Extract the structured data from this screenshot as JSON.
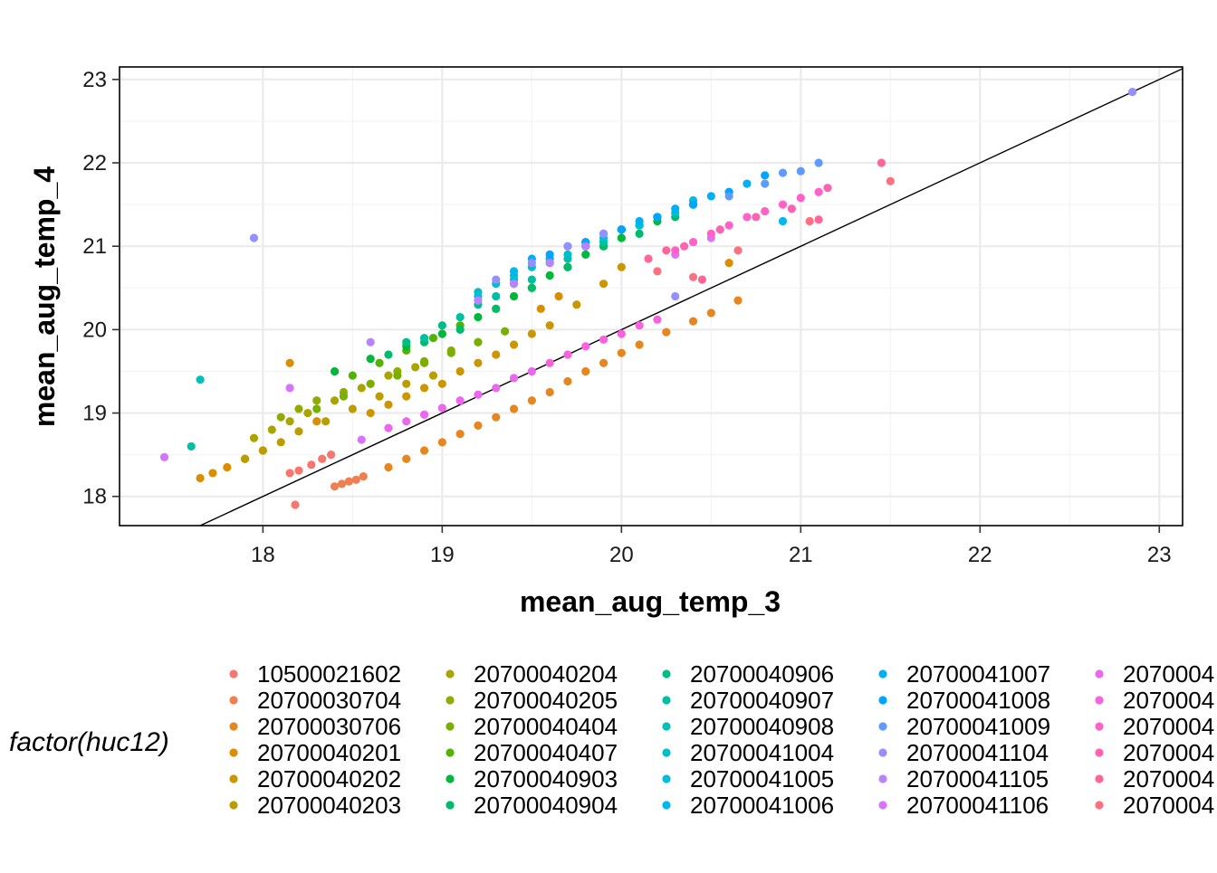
{
  "chart_data": {
    "type": "scatter",
    "xlabel": "mean_aug_temp_3",
    "ylabel": "mean_aug_temp_4",
    "xlim": [
      17.2,
      23.13
    ],
    "ylim": [
      17.65,
      23.15
    ],
    "x_ticks": [
      18,
      19,
      20,
      21,
      22,
      23
    ],
    "y_ticks": [
      18,
      19,
      20,
      21,
      22,
      23
    ],
    "x_tick_labels": [
      "18",
      "19",
      "20",
      "21",
      "22",
      "23"
    ],
    "y_tick_labels": [
      "18",
      "19",
      "20",
      "21",
      "22",
      "23"
    ],
    "grid": true,
    "reference_line": {
      "slope": 1,
      "intercept": 0,
      "color": "#000000"
    },
    "legend": {
      "title": "factor(huc12)",
      "position": "bottom",
      "columns": 5,
      "rows": 6,
      "entries": [
        {
          "label": "10500021602",
          "color": "#F8766D"
        },
        {
          "label": "20700030704",
          "color": "#F07E4F"
        },
        {
          "label": "20700030706",
          "color": "#E6861F"
        },
        {
          "label": "20700040201",
          "color": "#DA8E00"
        },
        {
          "label": "20700040202",
          "color": "#CC9600"
        },
        {
          "label": "20700040203",
          "color": "#BB9D00"
        },
        {
          "label": "20700040204",
          "color": "#A9A400"
        },
        {
          "label": "20700040205",
          "color": "#93AA00"
        },
        {
          "label": "20700040404",
          "color": "#79AF00"
        },
        {
          "label": "20700040407",
          "color": "#53B400"
        },
        {
          "label": "20700040903",
          "color": "#00B83A"
        },
        {
          "label": "20700040904",
          "color": "#00BB69"
        },
        {
          "label": "20700040906",
          "color": "#00BD88"
        },
        {
          "label": "20700040907",
          "color": "#00BFA2"
        },
        {
          "label": "20700040908",
          "color": "#00C0B9"
        },
        {
          "label": "20700041004",
          "color": "#00BFCD"
        },
        {
          "label": "20700041005",
          "color": "#00BCDF"
        },
        {
          "label": "20700041006",
          "color": "#00B8EE"
        },
        {
          "label": "20700041007",
          "color": "#00B0F6"
        },
        {
          "label": "20700041008",
          "color": "#00A5FF"
        },
        {
          "label": "20700041009",
          "color": "#5F9BFF"
        },
        {
          "label": "20700041104",
          "color": "#9590FF"
        },
        {
          "label": "20700041105",
          "color": "#B983FF"
        },
        {
          "label": "20700041106",
          "color": "#D774FD"
        },
        {
          "label": "2070004",
          "color": "#EB67EE"
        },
        {
          "label": "2070004",
          "color": "#F962DD"
        },
        {
          "label": "2070004",
          "color": "#FF61C9"
        },
        {
          "label": "2070004",
          "color": "#FF62B1"
        },
        {
          "label": "2070004",
          "color": "#FF6697"
        },
        {
          "label": "2070004",
          "color": "#FC717F"
        }
      ]
    },
    "series": [
      {
        "name": "10500021602",
        "color": "#F8766D",
        "x": [
          18.15,
          18.2,
          18.27,
          18.33,
          18.38,
          18.18
        ],
        "y": [
          18.28,
          18.31,
          18.38,
          18.45,
          18.5,
          17.9
        ]
      },
      {
        "name": "20700030704",
        "color": "#F07E4F",
        "x": [
          18.4,
          18.44,
          18.48,
          18.52,
          18.56
        ],
        "y": [
          18.12,
          18.15,
          18.18,
          18.2,
          18.24
        ]
      },
      {
        "name": "20700030706",
        "color": "#E6861F",
        "x": [
          18.7,
          18.8,
          18.9,
          19.0,
          19.1,
          19.2,
          19.3,
          19.4,
          19.5,
          19.6,
          19.7,
          19.8,
          19.9,
          20.0,
          20.1,
          20.25,
          20.4,
          20.5,
          20.65
        ],
        "y": [
          18.35,
          18.45,
          18.55,
          18.65,
          18.75,
          18.85,
          18.95,
          19.05,
          19.15,
          19.25,
          19.38,
          19.5,
          19.6,
          19.72,
          19.82,
          19.97,
          20.1,
          20.2,
          20.35
        ]
      },
      {
        "name": "20700040201",
        "color": "#DA8E00",
        "x": [
          17.65,
          17.72,
          17.8,
          17.9,
          18.0,
          18.15,
          18.3,
          19.55,
          19.65,
          20.6
        ],
        "y": [
          18.22,
          18.28,
          18.35,
          18.45,
          18.55,
          19.6,
          18.9,
          20.25,
          20.4,
          20.8
        ]
      },
      {
        "name": "20700040202",
        "color": "#CC9600",
        "x": [
          18.6,
          18.7,
          18.8,
          18.9,
          19.0,
          19.1,
          19.2,
          19.3,
          19.4,
          19.5,
          19.6,
          19.75,
          19.9,
          20.0
        ],
        "y": [
          19.0,
          19.1,
          19.2,
          19.3,
          19.35,
          19.5,
          19.6,
          19.7,
          19.82,
          19.95,
          20.05,
          20.3,
          20.55,
          20.75
        ]
      },
      {
        "name": "20700040203",
        "color": "#BB9D00",
        "x": [
          17.9,
          18.0,
          18.1,
          18.2,
          18.35,
          18.5,
          18.65,
          18.8,
          18.95
        ],
        "y": [
          18.45,
          18.55,
          18.65,
          18.78,
          18.9,
          19.05,
          19.2,
          19.35,
          19.45
        ]
      },
      {
        "name": "20700040204",
        "color": "#A9A400",
        "x": [
          17.95,
          18.05,
          18.15,
          18.25,
          18.4,
          18.55,
          18.7,
          18.85
        ],
        "y": [
          18.7,
          18.8,
          18.9,
          19.0,
          19.15,
          19.3,
          19.45,
          19.55
        ]
      },
      {
        "name": "20700040205",
        "color": "#93AA00",
        "x": [
          18.1,
          18.2,
          18.3,
          18.45,
          18.6,
          18.75,
          18.9,
          19.05,
          19.2
        ],
        "y": [
          18.95,
          19.05,
          19.15,
          19.25,
          19.35,
          19.5,
          19.62,
          19.75,
          19.85
        ]
      },
      {
        "name": "20700040404",
        "color": "#79AF00",
        "x": [
          18.3,
          18.45,
          18.6,
          18.75,
          18.9,
          19.05,
          19.2,
          19.35
        ],
        "y": [
          19.05,
          19.2,
          19.35,
          19.45,
          19.6,
          19.72,
          19.85,
          19.98
        ]
      },
      {
        "name": "20700040407",
        "color": "#53B400",
        "x": [
          18.5,
          18.65,
          18.8,
          18.95,
          19.1,
          19.3,
          19.5,
          19.7,
          19.9
        ],
        "y": [
          19.45,
          19.6,
          19.75,
          19.9,
          20.05,
          20.25,
          20.5,
          20.75,
          21.0
        ]
      },
      {
        "name": "20700040903",
        "color": "#00B83A",
        "x": [
          18.4,
          18.6,
          18.8,
          19.0,
          19.2,
          19.4,
          19.6,
          19.8,
          20.0,
          20.2,
          20.4
        ],
        "y": [
          19.5,
          19.65,
          19.8,
          19.95,
          20.15,
          20.4,
          20.65,
          20.9,
          21.1,
          21.3,
          21.5
        ]
      },
      {
        "name": "20700040904",
        "color": "#00BB69",
        "x": [
          18.7,
          18.9,
          19.1,
          19.3,
          19.5,
          19.7,
          19.9,
          20.1,
          20.3
        ],
        "y": [
          19.7,
          19.85,
          20.0,
          20.25,
          20.5,
          20.75,
          21.0,
          21.15,
          21.35
        ]
      },
      {
        "name": "20700040906",
        "color": "#00BD88",
        "x": [
          18.8,
          19.0,
          19.2,
          19.4,
          19.6,
          19.8,
          20.0,
          20.2
        ],
        "y": [
          19.85,
          20.05,
          20.3,
          20.55,
          20.8,
          21.0,
          21.2,
          21.35
        ]
      },
      {
        "name": "20700040907",
        "color": "#00BFA2",
        "x": [
          17.6,
          18.9,
          19.1,
          19.3,
          19.5,
          19.7,
          19.9,
          20.1
        ],
        "y": [
          18.6,
          19.9,
          20.15,
          20.4,
          20.6,
          20.85,
          21.05,
          21.25
        ]
      },
      {
        "name": "20700040908",
        "color": "#00C0B9",
        "x": [
          17.65,
          19.2,
          19.4,
          19.6,
          19.8,
          20.0
        ],
        "y": [
          19.4,
          20.45,
          20.65,
          20.85,
          21.0,
          21.2
        ]
      },
      {
        "name": "20700041004",
        "color": "#00BFCD",
        "x": [
          19.3,
          19.5,
          19.7,
          19.9,
          20.1,
          20.3
        ],
        "y": [
          20.55,
          20.75,
          20.9,
          21.1,
          21.25,
          21.4
        ]
      },
      {
        "name": "20700041005",
        "color": "#00BCDF",
        "x": [
          19.2,
          19.4,
          19.6,
          19.8,
          20.0,
          20.2,
          20.4
        ],
        "y": [
          20.4,
          20.6,
          20.8,
          21.0,
          21.2,
          21.35,
          21.55
        ]
      },
      {
        "name": "20700041006",
        "color": "#00B8EE",
        "x": [
          19.4,
          19.6,
          19.8,
          20.0,
          20.2,
          20.4,
          20.6,
          20.9
        ],
        "y": [
          20.7,
          20.85,
          21.05,
          21.2,
          21.35,
          21.5,
          21.65,
          21.3
        ]
      },
      {
        "name": "20700041007",
        "color": "#00B0F6",
        "x": [
          19.5,
          19.7,
          19.9,
          20.1,
          20.3,
          20.5,
          20.7
        ],
        "y": [
          20.85,
          21.0,
          21.15,
          21.3,
          21.45,
          21.6,
          21.75
        ]
      },
      {
        "name": "20700041008",
        "color": "#00A5FF",
        "x": [
          19.6,
          19.8,
          20.0,
          20.2,
          20.4,
          20.6,
          20.8
        ],
        "y": [
          20.9,
          21.05,
          21.2,
          21.35,
          21.5,
          21.65,
          21.85
        ]
      },
      {
        "name": "20700041009",
        "color": "#5F9BFF",
        "x": [
          20.6,
          20.8,
          20.9,
          21.0,
          21.1
        ],
        "y": [
          21.6,
          21.75,
          21.88,
          21.9,
          22.0
        ]
      },
      {
        "name": "20700041104",
        "color": "#9590FF",
        "x": [
          17.95,
          19.3,
          19.5,
          19.7,
          19.9,
          20.3,
          22.85
        ],
        "y": [
          21.1,
          20.6,
          20.8,
          21.0,
          21.15,
          20.4,
          22.85
        ]
      },
      {
        "name": "20700041105",
        "color": "#B983FF",
        "x": [
          18.6,
          19.2,
          19.4,
          19.6,
          19.8
        ],
        "y": [
          19.85,
          20.35,
          20.55,
          20.8,
          21.0
        ]
      },
      {
        "name": "20700041106",
        "color": "#D774FD",
        "x": [
          17.45,
          18.15,
          18.55,
          20.3,
          20.5
        ],
        "y": [
          18.47,
          19.3,
          18.68,
          20.9,
          21.1
        ]
      },
      {
        "name": "2070004",
        "color": "#EB67EE",
        "x": [
          18.7,
          18.8,
          18.9,
          19.0,
          19.1,
          19.2,
          19.3,
          19.4,
          19.5
        ],
        "y": [
          18.82,
          18.9,
          18.98,
          19.06,
          19.15,
          19.22,
          19.3,
          19.42,
          19.5
        ]
      },
      {
        "name": "2070004",
        "color": "#F962DD",
        "x": [
          19.6,
          19.7,
          19.8,
          19.9,
          20.0,
          20.1,
          20.2
        ],
        "y": [
          19.6,
          19.7,
          19.8,
          19.88,
          19.95,
          20.05,
          20.12
        ]
      },
      {
        "name": "2070004",
        "color": "#FF61C9",
        "x": [
          20.3,
          20.4,
          20.5,
          20.6,
          20.7,
          20.8,
          20.9,
          21.0,
          21.1
        ],
        "y": [
          20.95,
          21.05,
          21.15,
          21.25,
          21.35,
          21.42,
          21.5,
          21.58,
          21.65
        ]
      },
      {
        "name": "2070004",
        "color": "#FF62B1",
        "x": [
          20.35,
          20.55,
          20.75,
          20.95,
          21.15
        ],
        "y": [
          21.0,
          21.2,
          21.35,
          21.45,
          21.7
        ]
      },
      {
        "name": "2070004",
        "color": "#FF6697",
        "x": [
          21.45,
          20.15,
          20.25,
          20.45,
          21.1
        ],
        "y": [
          22.0,
          20.85,
          20.95,
          20.6,
          21.32
        ]
      },
      {
        "name": "2070004",
        "color": "#FC717F",
        "x": [
          21.5,
          20.2,
          20.4,
          20.65,
          21.05
        ],
        "y": [
          21.78,
          20.7,
          20.63,
          20.95,
          21.3
        ]
      }
    ]
  }
}
